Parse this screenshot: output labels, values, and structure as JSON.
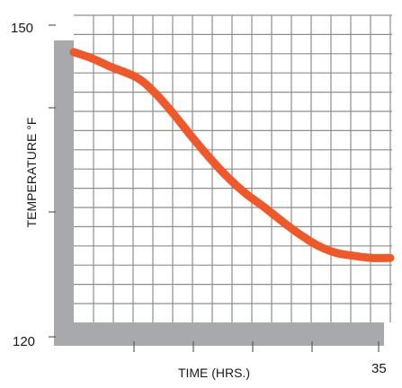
{
  "chart_data": {
    "type": "line",
    "title": "",
    "xlabel": "TIME (HRS.)",
    "ylabel": "TEMPERATURE °F",
    "xlim": [
      0,
      35
    ],
    "ylim": [
      120,
      150
    ],
    "x_tick_labels": [
      {
        "value": 35,
        "label": "35"
      }
    ],
    "y_tick_labels": [
      {
        "value": 150,
        "label": "150"
      },
      {
        "value": 120,
        "label": "120"
      }
    ],
    "grid": true,
    "legend": "none",
    "series": [
      {
        "color": "#f0582a",
        "x": [
          0,
          2,
          4,
          7,
          9,
          11,
          13,
          15,
          17,
          19,
          21,
          23,
          25,
          27,
          29,
          31,
          33,
          35
        ],
        "y": [
          146.4,
          145.8,
          145.0,
          143.9,
          142.4,
          140.4,
          138.2,
          136.1,
          134.2,
          132.6,
          131.3,
          129.9,
          128.6,
          127.5,
          126.8,
          126.5,
          126.3,
          126.3
        ]
      }
    ]
  },
  "colors": {
    "frame": "#a7a9ac",
    "grid": "#8c8e91",
    "line": "#f0582a"
  }
}
